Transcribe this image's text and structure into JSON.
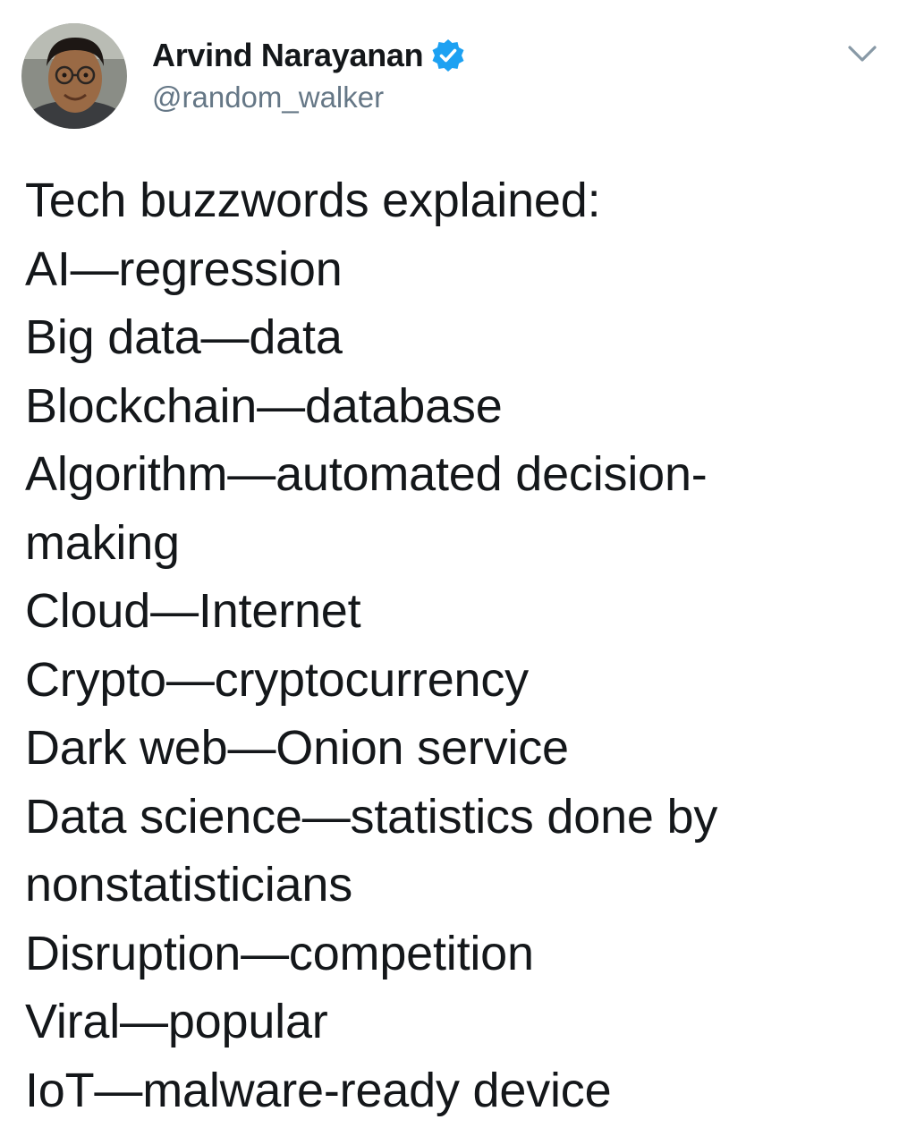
{
  "author": {
    "display_name": "Arvind Narayanan",
    "handle": "@random_walker",
    "verified": true,
    "verified_color": "#1da1f2"
  },
  "icons": {
    "verified_badge": "verified-badge-icon",
    "menu": "chevron-down-icon"
  },
  "tweet": {
    "lines": [
      "Tech buzzwords explained:",
      "AI—regression",
      "Big data—data",
      "Blockchain—database",
      "Algorithm—automated decision-",
      "making",
      "Cloud—Internet",
      "Crypto—cryptocurrency",
      "Dark web—Onion service",
      "Data science—statistics done by",
      "nonstatisticians",
      "Disruption—competition",
      "Viral—popular",
      "IoT—malware-ready device"
    ]
  },
  "colors": {
    "text": "#14171a",
    "secondary_text": "#657786",
    "accent": "#1da1f2"
  }
}
